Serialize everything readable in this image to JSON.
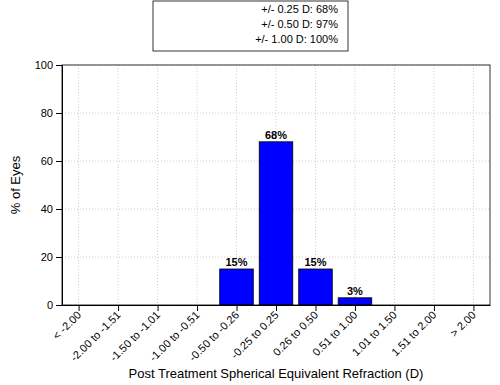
{
  "chart_data": {
    "type": "bar",
    "x_label": "Post Treatment Spherical Equivalent Refraction (D)",
    "y_label": "% of Eyes",
    "annotations": [
      "+/- 0.25 D: 68%",
      "+/- 0.50 D: 97%",
      "+/- 1.00 D: 100%"
    ],
    "categories": [
      "< -2.00",
      "-2.00 to -1.51",
      "-1.50 to -1.01",
      "-1.00 to -0.51",
      "-0.50 to -0.26",
      "-0.25 to 0.25",
      "0.26 to 0.50",
      "0.51 to 1.00",
      "1.01 to 1.50",
      "1.51 to 2.00",
      "> 2.00"
    ],
    "values": [
      0,
      0,
      0,
      0,
      15,
      68,
      15,
      3,
      0,
      0,
      0
    ],
    "value_labels": [
      null,
      null,
      null,
      null,
      "15%",
      "68%",
      "15%",
      "3%",
      null,
      null,
      null
    ],
    "color": "#0000ff",
    "ylim": [
      0,
      100
    ],
    "yticks": [
      0,
      20,
      40,
      60,
      80,
      100
    ],
    "grid": true,
    "data_labels": true
  }
}
